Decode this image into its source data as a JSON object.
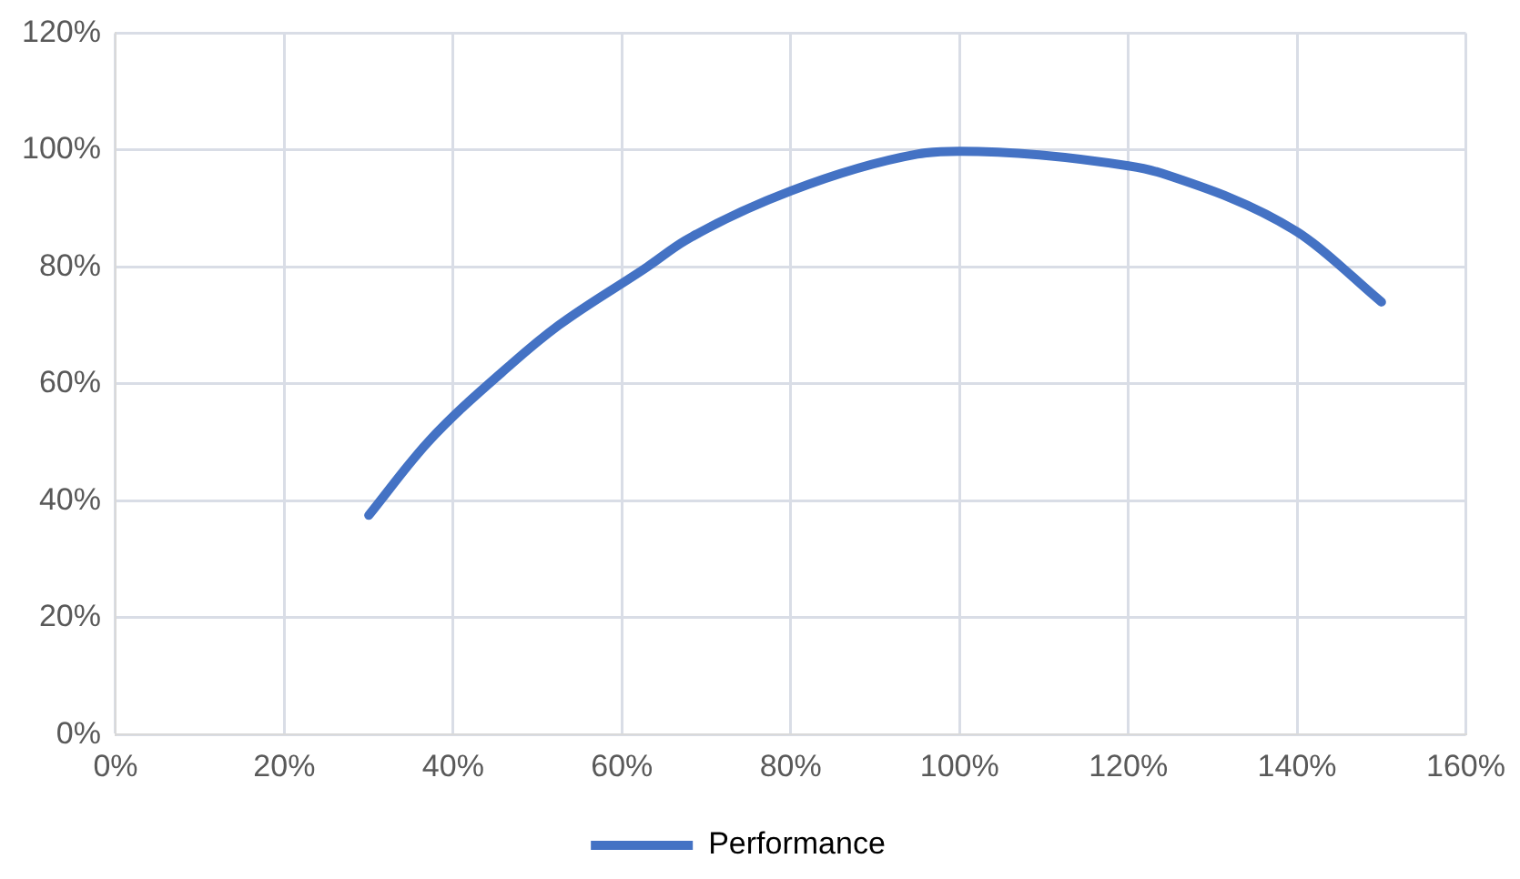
{
  "chart_data": {
    "type": "line",
    "x": [
      30,
      37,
      47,
      52.5,
      63,
      67.5,
      80,
      95,
      100,
      120,
      124,
      140,
      150
    ],
    "series": [
      {
        "name": "Performance",
        "color": "#4472c4",
        "values": [
          37.5,
          50,
          63.5,
          70,
          80,
          84.5,
          93,
          99.3,
          99.8,
          97.3,
          96,
          86,
          74
        ]
      }
    ],
    "xlim": [
      0,
      160
    ],
    "xticks": [
      {
        "value": 0,
        "label": "0%"
      },
      {
        "value": 20,
        "label": "20%"
      },
      {
        "value": 40,
        "label": "40%"
      },
      {
        "value": 60,
        "label": "60%"
      },
      {
        "value": 80,
        "label": "80%"
      },
      {
        "value": 100,
        "label": "100%"
      },
      {
        "value": 120,
        "label": "120%"
      },
      {
        "value": 140,
        "label": "140%"
      },
      {
        "value": 160,
        "label": "160%"
      }
    ],
    "ylim": [
      0,
      120
    ],
    "yticks": [
      {
        "value": 0,
        "label": "0%"
      },
      {
        "value": 20,
        "label": "20%"
      },
      {
        "value": 40,
        "label": "40%"
      },
      {
        "value": 60,
        "label": "60%"
      },
      {
        "value": 80,
        "label": "80%"
      },
      {
        "value": 100,
        "label": "100%"
      },
      {
        "value": 120,
        "label": "120%"
      }
    ],
    "grid": true,
    "legend": "bottom",
    "marker": "none",
    "line_style": "solid"
  }
}
